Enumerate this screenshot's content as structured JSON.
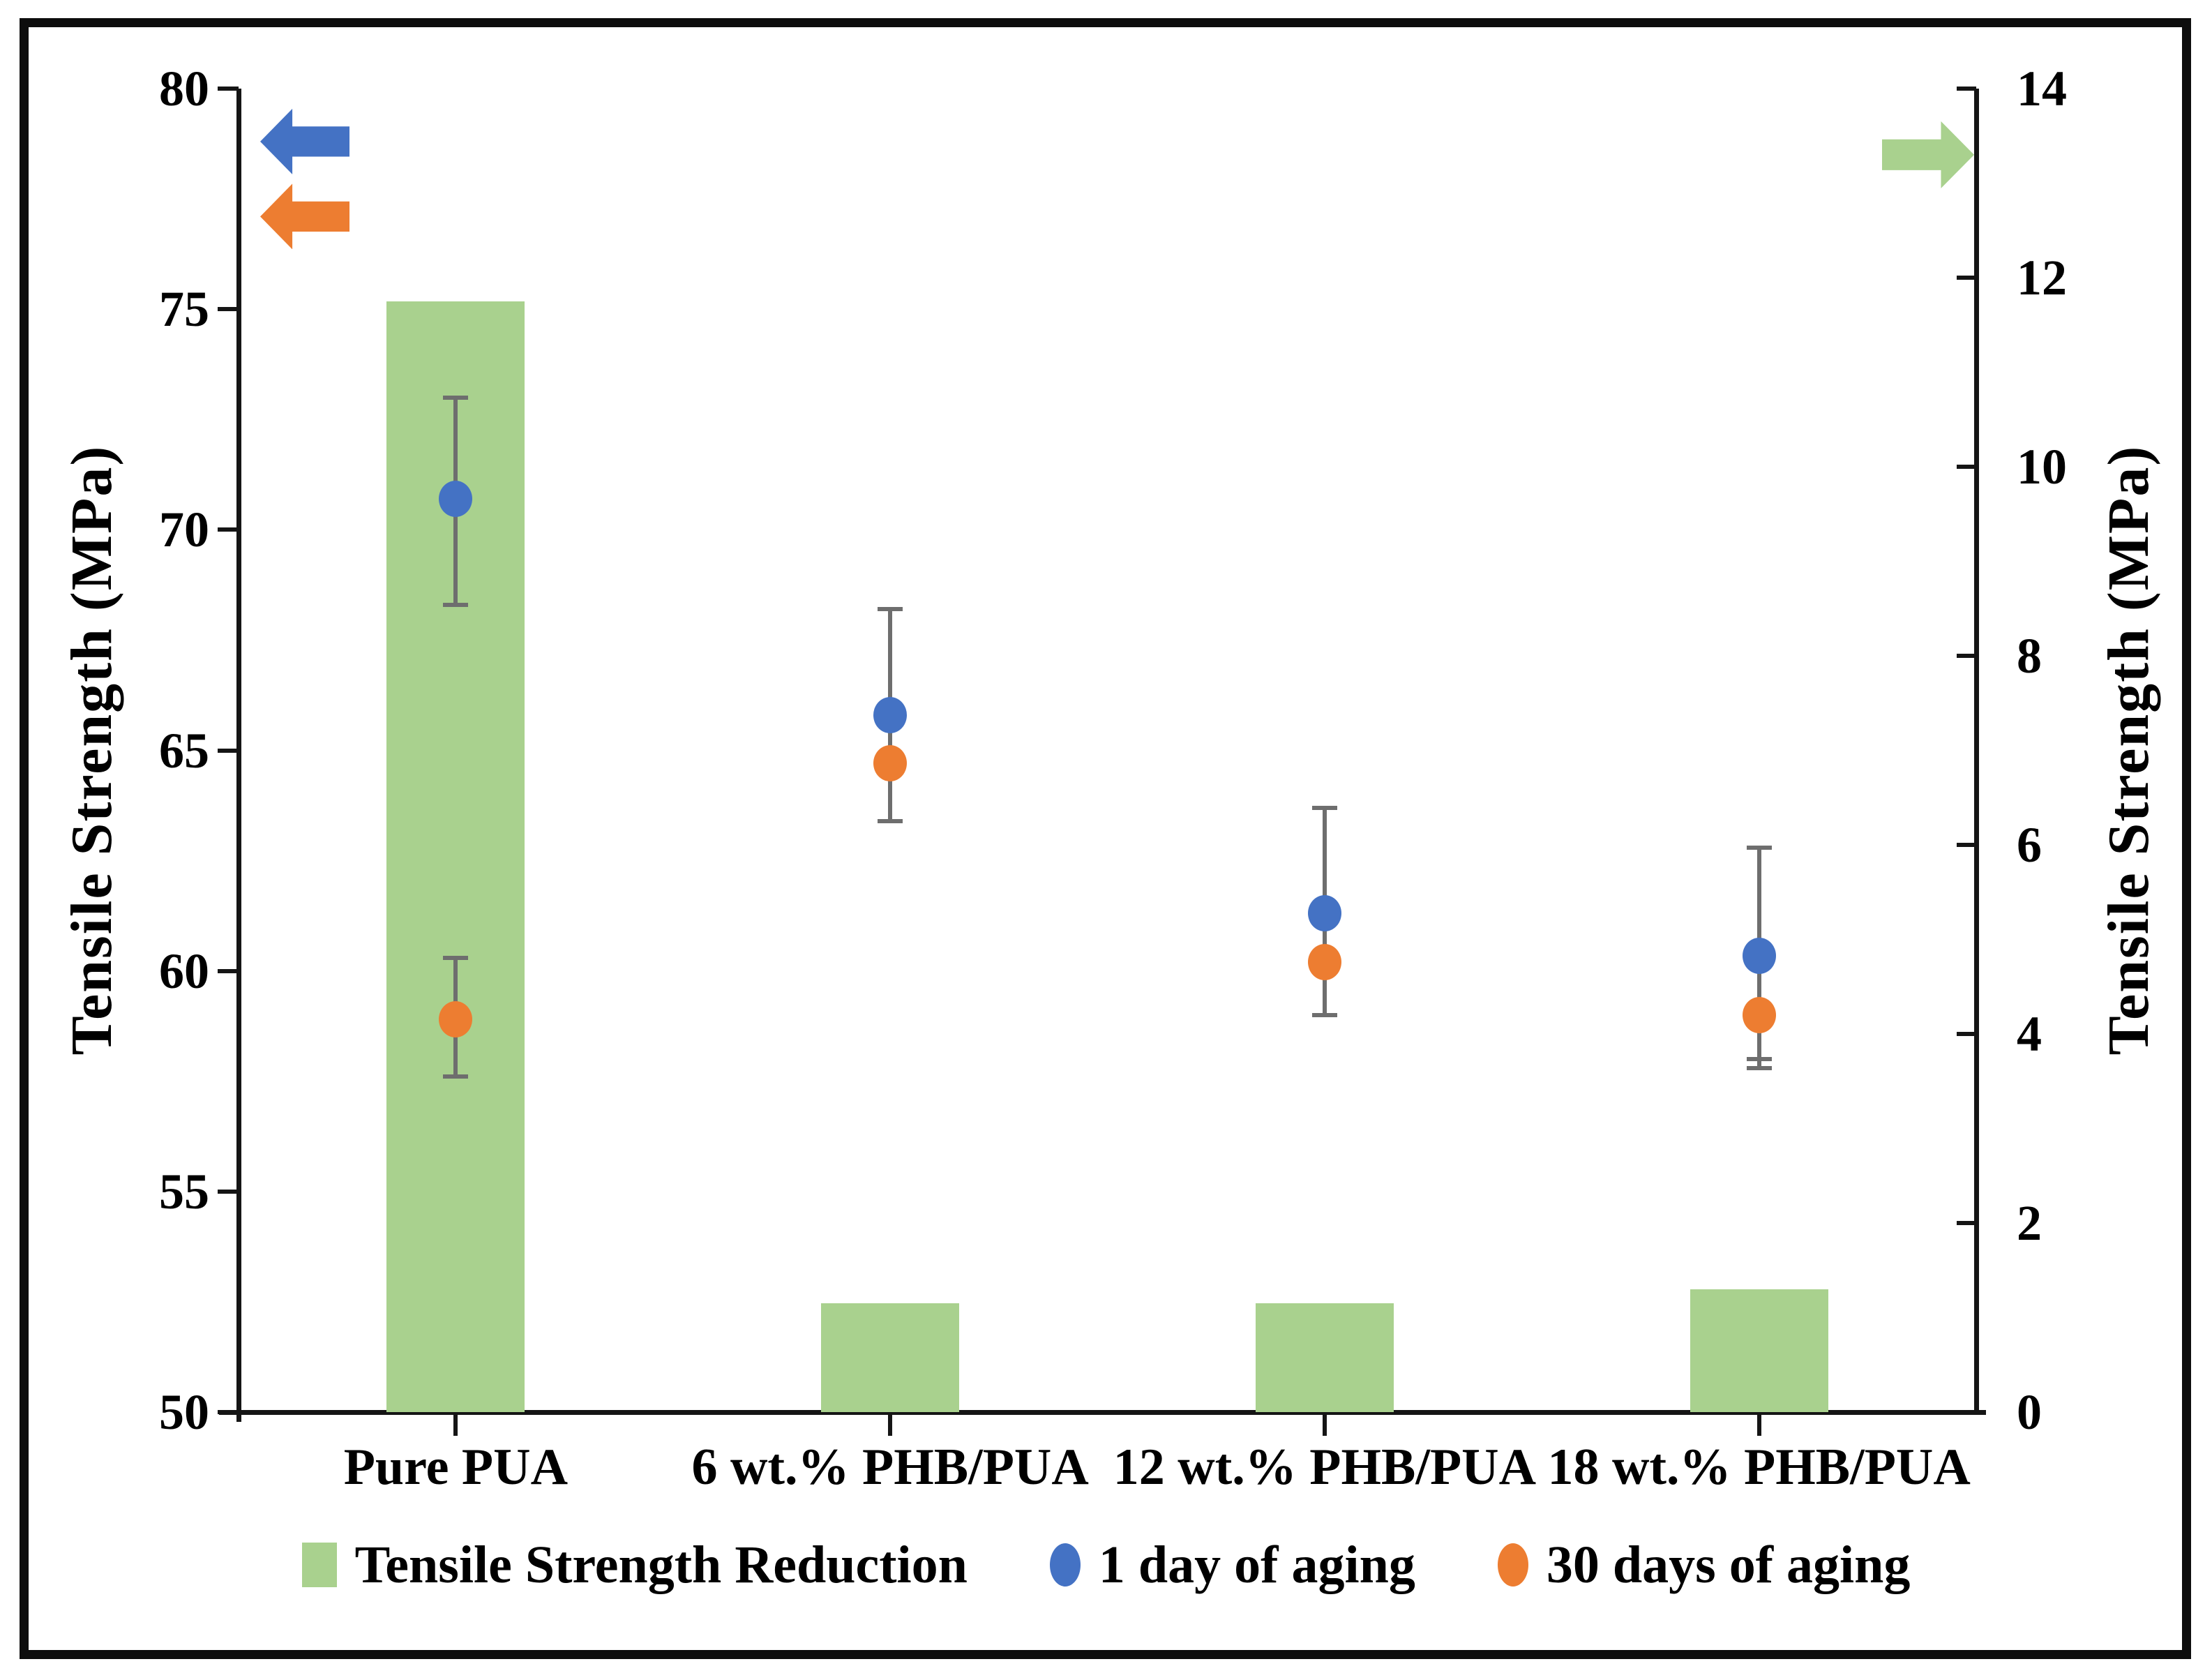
{
  "chart_data": {
    "type": "combo-bar-scatter",
    "categories": [
      "Pure PUA",
      "6 wt.% PHB/PUA",
      "12 wt.% PHB/PUA",
      "18 wt.% PHB/PUA"
    ],
    "series": [
      {
        "name": "Tensile Strength Reduction",
        "type": "bar",
        "axis": "right",
        "color": "#a9d18e",
        "values": [
          11.75,
          1.15,
          1.15,
          1.3
        ]
      },
      {
        "name": "1 day of aging",
        "type": "scatter",
        "axis": "left",
        "color": "#4472c4",
        "values": [
          70.7,
          65.8,
          61.3,
          60.35
        ],
        "error_high": [
          73.0,
          68.2,
          63.7,
          62.8
        ],
        "error_low": [
          68.3,
          63.4,
          59.0,
          58.0
        ]
      },
      {
        "name": "30 days of aging",
        "type": "scatter",
        "axis": "left",
        "color": "#ed7d31",
        "values": [
          58.9,
          64.7,
          60.2,
          59.0
        ],
        "error_high": [
          60.3,
          66.0,
          61.5,
          60.3
        ],
        "error_low": [
          57.6,
          63.4,
          59.0,
          57.8
        ]
      }
    ],
    "left_axis": {
      "label": "Tensile Strength (MPa)",
      "min": 50,
      "max": 80,
      "tick_step": 5,
      "ticks": [
        80,
        75,
        70,
        65,
        60,
        55,
        50
      ]
    },
    "right_axis": {
      "label": "Tensile Strength (MPa)",
      "min": 0,
      "max": 14,
      "tick_step": 2,
      "ticks": [
        14,
        12,
        10,
        8,
        6,
        4,
        2,
        0
      ]
    },
    "grid": false,
    "legend_position": "bottom",
    "annotations": {
      "left_axis_arrows": [
        {
          "name": "blue-left-arrow",
          "color": "#4472c4",
          "at_left_value": 78.8,
          "direction": "left"
        },
        {
          "name": "orange-left-arrow",
          "color": "#ed7d31",
          "at_left_value": 77.1,
          "direction": "left"
        }
      ],
      "right_axis_arrow": {
        "name": "green-right-arrow",
        "color": "#a9d18e",
        "at_right_value": 13.3,
        "direction": "right"
      }
    }
  },
  "legend": {
    "items": [
      {
        "label": "Tensile Strength Reduction",
        "marker": "square",
        "color": "#a9d18e"
      },
      {
        "label": "1 day of aging",
        "marker": "circle",
        "color": "#4472c4"
      },
      {
        "label": "30 days of aging",
        "marker": "circle",
        "color": "#ed7d31"
      }
    ]
  },
  "colors": {
    "bar_green": "#a9d18e",
    "series_blue": "#4472c4",
    "series_orange": "#ed7d31",
    "error_gray": "#6e6e6e",
    "axis_black": "#151515"
  }
}
